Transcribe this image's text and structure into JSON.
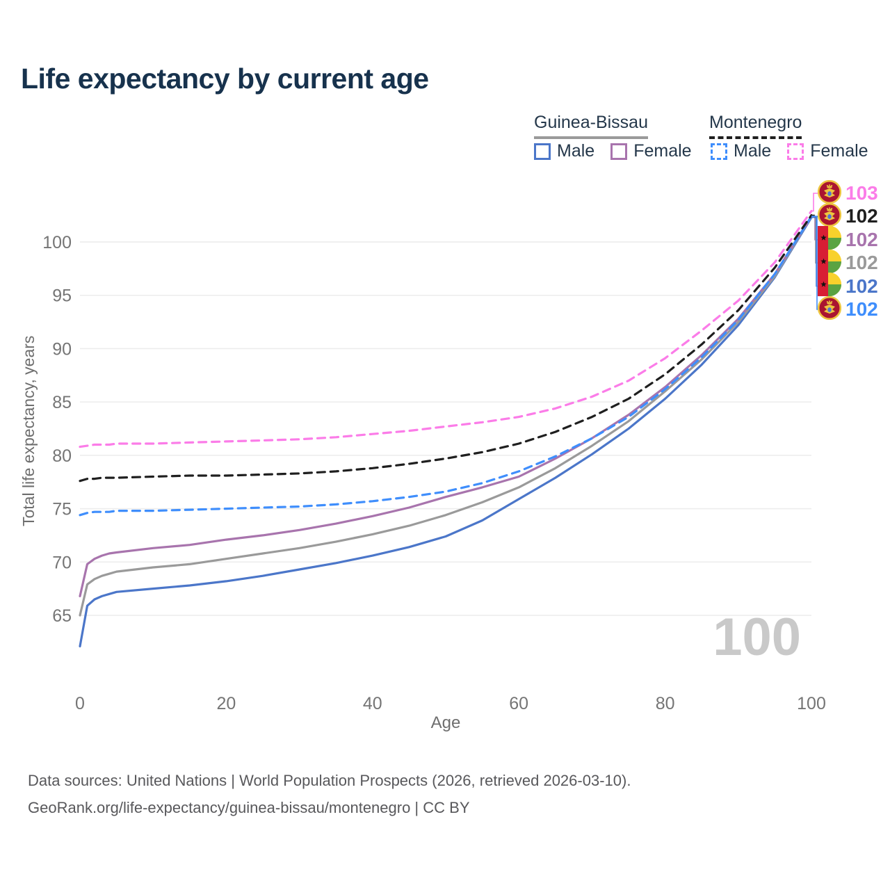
{
  "title": "Life expectancy by current age",
  "legend": {
    "groups": [
      {
        "country": "Guinea-Bissau",
        "line_style": "solid",
        "underline_color": "#9a9a9a",
        "items": [
          {
            "label": "Male",
            "color": "#4b76c9"
          },
          {
            "label": "Female",
            "color": "#a874ad"
          }
        ]
      },
      {
        "country": "Montenegro",
        "line_style": "dashed",
        "underline_color": "#1f1f1f",
        "items": [
          {
            "label": "Male",
            "color": "#3f8efc"
          },
          {
            "label": "Female",
            "color": "#fb7ce8"
          }
        ]
      }
    ]
  },
  "chart_data": {
    "type": "line",
    "title": "Life expectancy by current age",
    "xlabel": "Age",
    "ylabel": "Total life expectancy, years",
    "xlim": [
      0,
      100
    ],
    "ylim": [
      61.5,
      103.5
    ],
    "xticks": [
      0,
      20,
      40,
      60,
      80,
      100
    ],
    "yticks": [
      65,
      70,
      75,
      80,
      85,
      90,
      95,
      100
    ],
    "grid": "horizontal-only",
    "age_indicator": "100",
    "ages": [
      0,
      1,
      2,
      3,
      4,
      5,
      10,
      15,
      20,
      25,
      30,
      35,
      40,
      45,
      50,
      55,
      60,
      65,
      70,
      75,
      80,
      85,
      90,
      95,
      100
    ],
    "series": [
      {
        "key": "gnb_male",
        "name": "Guinea-Bissau Male",
        "color": "#4b76c9",
        "dash": null,
        "values": [
          62.1,
          65.9,
          66.5,
          66.8,
          67.0,
          67.2,
          67.5,
          67.8,
          68.2,
          68.7,
          69.3,
          69.9,
          70.6,
          71.4,
          72.4,
          73.9,
          75.9,
          77.9,
          80.1,
          82.5,
          85.3,
          88.5,
          92.2,
          96.7,
          102.3
        ]
      },
      {
        "key": "gnb_total",
        "name": "Guinea-Bissau",
        "color": "#9a9a9a",
        "dash": null,
        "values": [
          65.0,
          67.9,
          68.4,
          68.7,
          68.9,
          69.1,
          69.5,
          69.8,
          70.3,
          70.8,
          71.3,
          71.9,
          72.6,
          73.4,
          74.4,
          75.6,
          77.0,
          78.8,
          80.9,
          83.2,
          86.0,
          89.0,
          92.5,
          96.8,
          102.4
        ]
      },
      {
        "key": "gnb_female",
        "name": "Guinea-Bissau Female",
        "color": "#a874ad",
        "dash": null,
        "values": [
          66.8,
          69.8,
          70.3,
          70.6,
          70.8,
          70.9,
          71.3,
          71.6,
          72.1,
          72.5,
          73.0,
          73.6,
          74.3,
          75.1,
          76.1,
          77.0,
          78.0,
          79.7,
          81.6,
          83.8,
          86.4,
          89.4,
          92.8,
          97.0,
          102.4
        ]
      },
      {
        "key": "mne_male",
        "name": "Montenegro Male",
        "color": "#3f8efc",
        "dash": "11 8",
        "values": [
          74.4,
          74.6,
          74.7,
          74.7,
          74.7,
          74.8,
          74.8,
          74.9,
          75.0,
          75.1,
          75.2,
          75.4,
          75.7,
          76.1,
          76.6,
          77.4,
          78.5,
          79.9,
          81.6,
          83.6,
          86.2,
          89.2,
          92.7,
          97.0,
          102.4
        ]
      },
      {
        "key": "mne_total",
        "name": "Montenegro",
        "color": "#1f1f1f",
        "dash": "11 8",
        "values": [
          77.6,
          77.8,
          77.8,
          77.9,
          77.9,
          77.9,
          78.0,
          78.1,
          78.1,
          78.2,
          78.3,
          78.5,
          78.8,
          79.2,
          79.7,
          80.3,
          81.1,
          82.2,
          83.6,
          85.3,
          87.6,
          90.4,
          93.6,
          97.6,
          102.5
        ]
      },
      {
        "key": "mne_female",
        "name": "Montenegro Female",
        "color": "#fb7ce8",
        "dash": "11 8",
        "values": [
          80.8,
          80.9,
          81.0,
          81.0,
          81.0,
          81.1,
          81.1,
          81.2,
          81.3,
          81.4,
          81.5,
          81.7,
          82.0,
          82.3,
          82.7,
          83.1,
          83.6,
          84.4,
          85.5,
          87.0,
          89.1,
          91.7,
          94.5,
          98.1,
          102.9
        ]
      }
    ]
  },
  "right_labels": [
    {
      "series": "mne_female",
      "flag": "me",
      "flag_name": "montenegro-flag-icon",
      "value": "103",
      "color": "#fb7ce8"
    },
    {
      "series": "mne_total",
      "flag": "me",
      "flag_name": "montenegro-flag-icon",
      "value": "102",
      "color": "#1f1f1f"
    },
    {
      "series": "gnb_female",
      "flag": "gw",
      "flag_name": "guinea-bissau-flag-icon",
      "value": "102",
      "color": "#a874ad"
    },
    {
      "series": "gnb_total",
      "flag": "gw",
      "flag_name": "guinea-bissau-flag-icon",
      "value": "102",
      "color": "#9a9a9a"
    },
    {
      "series": "gnb_male",
      "flag": "gw",
      "flag_name": "guinea-bissau-flag-icon",
      "value": "102",
      "color": "#4b76c9"
    },
    {
      "series": "mne_male",
      "flag": "me",
      "flag_name": "montenegro-flag-icon",
      "value": "102",
      "color": "#3f8efc"
    }
  ],
  "colors": {
    "title": "#17324d",
    "tick_text": "#757575",
    "gridline": "#ececec",
    "watermark": "#c9c9c9",
    "footer_text": "#58585b"
  },
  "footer": {
    "line1": "Data sources: United Nations | World Population Prospects (2026, retrieved 2026-03-10).",
    "line2": "GeoRank.org/life-expectancy/guinea-bissau/montenegro | CC BY"
  }
}
